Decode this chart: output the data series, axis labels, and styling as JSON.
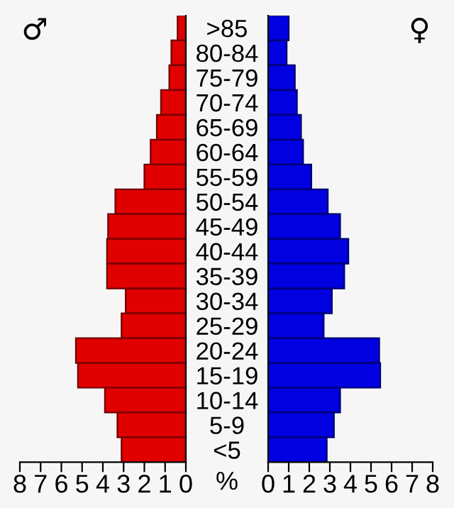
{
  "chart_data": [
    {
      "type": "bar",
      "orientation": "horizontal",
      "title": "♂",
      "xlabel": "%",
      "categories": [
        ">85",
        "80-84",
        "75-79",
        "70-74",
        "65-69",
        "60-64",
        "55-59",
        "50-54",
        "45-49",
        "40-44",
        "35-39",
        "30-34",
        "25-29",
        "20-24",
        "15-19",
        "10-14",
        "5-9",
        "<5"
      ],
      "color": "#e00000",
      "values": [
        0.4,
        0.7,
        0.8,
        1.2,
        1.4,
        1.7,
        2.0,
        3.4,
        3.75,
        3.8,
        3.8,
        2.9,
        3.1,
        5.3,
        5.2,
        3.9,
        3.3,
        3.1
      ],
      "xlim": [
        8,
        0
      ],
      "xticks": [
        8,
        7,
        6,
        5,
        4,
        3,
        2,
        1,
        0
      ]
    },
    {
      "type": "bar",
      "orientation": "horizontal",
      "title": "♀",
      "categories": [
        null,
        null,
        null,
        null,
        null,
        null,
        null,
        null,
        null,
        null,
        null,
        null,
        null,
        null,
        null,
        null,
        null,
        null
      ],
      "color": "#0000e0",
      "values": [
        1.0,
        0.9,
        1.3,
        1.4,
        1.6,
        1.7,
        2.1,
        2.9,
        3.5,
        3.9,
        3.7,
        3.1,
        2.7,
        5.4,
        5.45,
        3.5,
        3.2,
        2.85
      ],
      "xlim": [
        0,
        8
      ],
      "xticks": [
        0,
        1,
        2,
        3,
        4,
        5,
        6,
        7,
        8
      ]
    }
  ]
}
